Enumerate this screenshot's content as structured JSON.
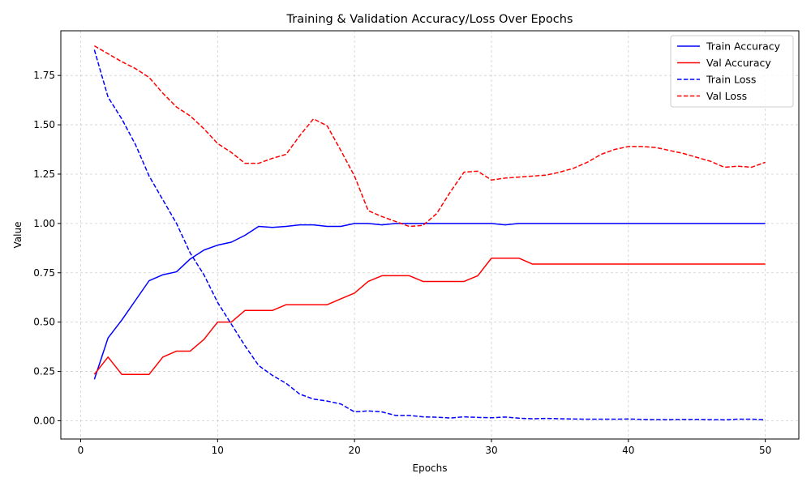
{
  "chart_data": {
    "type": "line",
    "title": "Training & Validation Accuracy/Loss Over Epochs",
    "xlabel": "Epochs",
    "ylabel": "Value",
    "xlim": [
      -1.45,
      52.45
    ],
    "ylim": [
      -0.0925,
      1.9765
    ],
    "xticks": [
      0,
      10,
      20,
      30,
      40,
      50
    ],
    "xtick_labels": [
      "0",
      "10",
      "20",
      "30",
      "40",
      "50"
    ],
    "yticks": [
      0.0,
      0.25,
      0.5,
      0.75,
      1.0,
      1.25,
      1.5,
      1.75
    ],
    "ytick_labels": [
      "0.00",
      "0.25",
      "0.50",
      "0.75",
      "1.00",
      "1.25",
      "1.50",
      "1.75"
    ],
    "grid": true,
    "legend_position": "top-right",
    "x": [
      1,
      2,
      3,
      4,
      5,
      6,
      7,
      8,
      9,
      10,
      11,
      12,
      13,
      14,
      15,
      16,
      17,
      18,
      19,
      20,
      21,
      22,
      23,
      24,
      25,
      26,
      27,
      28,
      29,
      30,
      31,
      32,
      33,
      34,
      35,
      36,
      37,
      38,
      39,
      40,
      41,
      42,
      43,
      44,
      45,
      46,
      47,
      48,
      49,
      50
    ],
    "series": [
      {
        "name": "Train Accuracy",
        "color": "#0000ff",
        "style": "solid",
        "values": [
          0.21,
          0.42,
          0.51,
          0.61,
          0.71,
          0.74,
          0.755,
          0.82,
          0.865,
          0.89,
          0.905,
          0.94,
          0.985,
          0.98,
          0.985,
          0.993,
          0.993,
          0.985,
          0.985,
          1.0,
          1.0,
          0.993,
          1.0,
          1.0,
          1.0,
          1.0,
          1.0,
          1.0,
          1.0,
          1.0,
          0.993,
          1.0,
          1.0,
          1.0,
          1.0,
          1.0,
          1.0,
          1.0,
          1.0,
          1.0,
          1.0,
          1.0,
          1.0,
          1.0,
          1.0,
          1.0,
          1.0,
          1.0,
          1.0,
          1.0
        ]
      },
      {
        "name": "Val Accuracy",
        "color": "#ff0000",
        "style": "solid",
        "values": [
          0.235,
          0.323,
          0.235,
          0.235,
          0.235,
          0.323,
          0.353,
          0.353,
          0.412,
          0.5,
          0.5,
          0.559,
          0.559,
          0.559,
          0.588,
          0.588,
          0.588,
          0.588,
          0.618,
          0.647,
          0.706,
          0.735,
          0.735,
          0.735,
          0.706,
          0.706,
          0.706,
          0.706,
          0.735,
          0.824,
          0.824,
          0.824,
          0.794,
          0.794,
          0.794,
          0.794,
          0.794,
          0.794,
          0.794,
          0.794,
          0.794,
          0.794,
          0.794,
          0.794,
          0.794,
          0.794,
          0.794,
          0.794,
          0.794,
          0.794
        ]
      },
      {
        "name": "Train Loss",
        "color": "#0000ff",
        "style": "dashed",
        "values": [
          1.88,
          1.64,
          1.53,
          1.4,
          1.24,
          1.12,
          1.0,
          0.85,
          0.74,
          0.6,
          0.49,
          0.38,
          0.28,
          0.23,
          0.19,
          0.135,
          0.11,
          0.1,
          0.085,
          0.045,
          0.05,
          0.045,
          0.027,
          0.027,
          0.02,
          0.018,
          0.014,
          0.02,
          0.017,
          0.015,
          0.019,
          0.013,
          0.01,
          0.012,
          0.01,
          0.009,
          0.008,
          0.008,
          0.008,
          0.009,
          0.007,
          0.006,
          0.006,
          0.007,
          0.007,
          0.006,
          0.005,
          0.008,
          0.008,
          0.005
        ]
      },
      {
        "name": "Val Loss",
        "color": "#ff0000",
        "style": "dashed",
        "values": [
          1.9,
          1.86,
          1.82,
          1.785,
          1.74,
          1.66,
          1.59,
          1.545,
          1.48,
          1.405,
          1.36,
          1.305,
          1.305,
          1.33,
          1.35,
          1.445,
          1.53,
          1.495,
          1.37,
          1.24,
          1.065,
          1.035,
          1.01,
          0.985,
          0.99,
          1.05,
          1.16,
          1.26,
          1.265,
          1.22,
          1.23,
          1.235,
          1.24,
          1.245,
          1.26,
          1.28,
          1.31,
          1.35,
          1.375,
          1.39,
          1.39,
          1.385,
          1.37,
          1.355,
          1.335,
          1.315,
          1.285,
          1.29,
          1.285,
          1.31
        ]
      }
    ]
  }
}
